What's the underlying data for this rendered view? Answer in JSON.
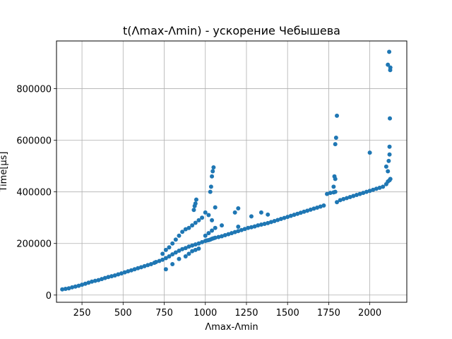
{
  "chart_data": {
    "type": "scatter",
    "title": "t(Λmax-Λmin) - ускорение Чебышева",
    "xlabel": "Λmax-Λmin",
    "ylabel": "Time[µs]",
    "xlim": [
      95,
      2225
    ],
    "ylim": [
      -28000,
      985000
    ],
    "x_ticks": [
      250,
      500,
      750,
      1000,
      1250,
      1500,
      1750,
      2000
    ],
    "x_tick_labels": [
      "250",
      "500",
      "750",
      "1000",
      "1250",
      "1500",
      "1750",
      "2000"
    ],
    "y_ticks": [
      0,
      200000,
      400000,
      600000,
      800000
    ],
    "y_tick_labels": [
      "0",
      "200000",
      "400000",
      "600000",
      "800000"
    ],
    "grid": true,
    "legend": "none",
    "series_color": "#1f77b4",
    "series": [
      {
        "x": [
          130,
          150,
          170,
          190,
          210,
          230,
          250,
          270,
          290,
          310,
          330,
          350,
          370,
          390,
          410,
          430,
          450,
          470,
          490,
          510,
          530,
          550,
          570,
          590,
          610,
          630,
          650,
          670,
          690,
          700,
          720,
          740,
          760,
          780,
          800,
          820,
          840,
          860,
          880,
          900,
          920,
          940,
          960,
          980,
          1000,
          1010,
          1020,
          1030,
          1040,
          1050,
          1060,
          1080,
          1100,
          1120,
          1140,
          1160,
          1180,
          1200,
          1220,
          1240,
          1260,
          1280,
          1300,
          1320,
          1340,
          1360,
          1380,
          1400,
          1420,
          1440,
          1460,
          1480,
          1500,
          1520,
          1540,
          1560,
          1580,
          1600,
          1620,
          1640,
          1660,
          1680,
          1700,
          1720,
          1740,
          1760,
          1780,
          1790,
          1800,
          1820,
          1840,
          1860,
          1880,
          1900,
          1920,
          1940,
          1960,
          1980,
          2000,
          2020,
          2040,
          2060,
          2080,
          2100,
          2110,
          2120,
          2125,
          740,
          760,
          780,
          800,
          820,
          840,
          860,
          880,
          900,
          920,
          940,
          960,
          980,
          1000,
          1020,
          1040,
          760,
          800,
          840,
          880,
          900,
          920,
          940,
          960,
          1000,
          1020,
          1040,
          1060,
          1100,
          1200,
          930,
          935,
          940,
          945,
          1030,
          1035,
          1040,
          1045,
          1050,
          1060,
          1180,
          1200,
          1280,
          1340,
          1380,
          1780,
          1785,
          1790,
          1795,
          1800,
          1790,
          2000,
          2100,
          2110,
          2115,
          2120,
          2120,
          2122,
          2124,
          2125,
          2110,
          2118
        ],
        "y": [
          22000,
          24000,
          26000,
          30000,
          33000,
          36000,
          40000,
          44000,
          48000,
          52000,
          55000,
          58000,
          62000,
          66000,
          70000,
          73000,
          76000,
          80000,
          84000,
          88000,
          92000,
          96000,
          100000,
          104000,
          108000,
          112000,
          116000,
          120000,
          125000,
          128000,
          132000,
          137000,
          143000,
          150000,
          158000,
          165000,
          172000,
          178000,
          182000,
          188000,
          192000,
          196000,
          200000,
          205000,
          210000,
          212000,
          213000,
          215000,
          218000,
          220000,
          222000,
          225000,
          228000,
          232000,
          236000,
          240000,
          244000,
          248000,
          252000,
          256000,
          260000,
          263000,
          266000,
          270000,
          273000,
          276000,
          279000,
          283000,
          287000,
          291000,
          295000,
          299000,
          303000,
          307000,
          311000,
          315000,
          319000,
          323000,
          327000,
          331000,
          335000,
          339000,
          343000,
          347000,
          392000,
          396000,
          398000,
          400000,
          360000,
          368000,
          372000,
          376000,
          380000,
          384000,
          388000,
          392000,
          396000,
          400000,
          404000,
          408000,
          412000,
          416000,
          420000,
          430000,
          440000,
          445000,
          450000,
          160000,
          175000,
          185000,
          200000,
          215000,
          230000,
          245000,
          255000,
          260000,
          270000,
          280000,
          290000,
          300000,
          320000,
          310000,
          290000,
          100000,
          120000,
          140000,
          150000,
          160000,
          170000,
          175000,
          180000,
          230000,
          240000,
          250000,
          260000,
          270000,
          265000,
          330000,
          345000,
          355000,
          370000,
          400000,
          420000,
          460000,
          480000,
          495000,
          340000,
          320000,
          336000,
          305000,
          320000,
          312000,
          420000,
          460000,
          585000,
          610000,
          695000,
          450000,
          552000,
          498000,
          480000,
          520000,
          545000,
          575000,
          685000,
          872000,
          882000,
          893000,
          943000
        ]
      }
    ]
  }
}
